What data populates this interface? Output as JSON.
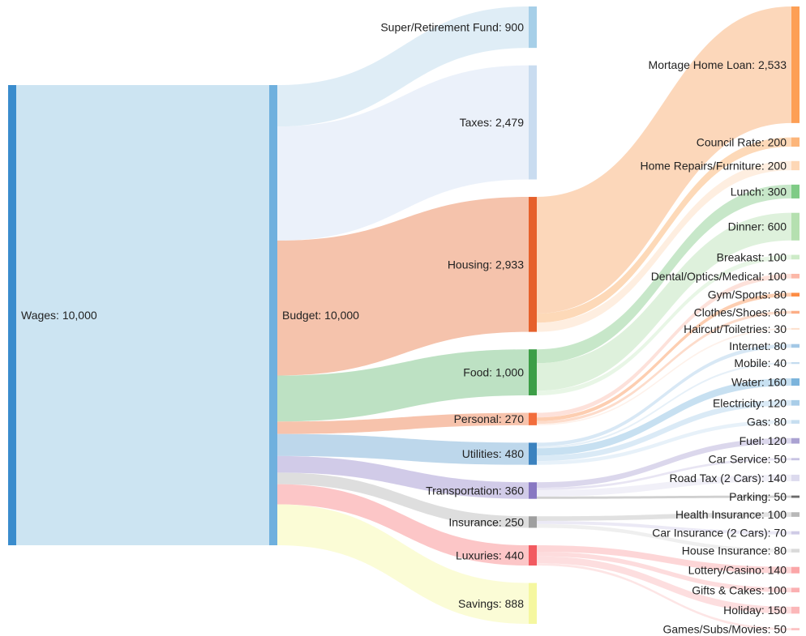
{
  "chart_data": {
    "type": "sankey",
    "value_format": "thousands-separated",
    "nodes": [
      {
        "id": "wages",
        "name": "Wages",
        "value": 10000,
        "color": "#3a8ccd",
        "link_color": "#c3dff0"
      },
      {
        "id": "budget",
        "name": "Budget",
        "value": 10000,
        "color": "#6fb0de",
        "link_color": "#c3dff0"
      },
      {
        "id": "super",
        "name": "Super/Retirement Fund",
        "value": 900,
        "color": "#a6cfe8",
        "link_color": "#d9eaf5"
      },
      {
        "id": "taxes",
        "name": "Taxes",
        "value": 2479,
        "color": "#c9dcf0",
        "link_color": "#e7eff9"
      },
      {
        "id": "housing",
        "name": "Housing",
        "value": 2933,
        "color": "#e6602b",
        "link_color": "#f3b89d"
      },
      {
        "id": "food",
        "name": "Food",
        "value": 1000,
        "color": "#3c9e47",
        "link_color": "#b2dcb8"
      },
      {
        "id": "personal",
        "name": "Personal",
        "value": 270,
        "color": "#f26d3c",
        "link_color": "#f6b99e"
      },
      {
        "id": "utilities",
        "name": "Utilities",
        "value": 480,
        "color": "#3b82bf",
        "link_color": "#b2d0e8"
      },
      {
        "id": "transportation",
        "name": "Transportation",
        "value": 360,
        "color": "#8878c2",
        "link_color": "#c9c2e4"
      },
      {
        "id": "insurance",
        "name": "Insurance",
        "value": 250,
        "color": "#9f9f9f",
        "link_color": "#d8d8d8"
      },
      {
        "id": "luxuries",
        "name": "Luxuries",
        "value": 440,
        "color": "#f25a60",
        "link_color": "#fcbcbd"
      },
      {
        "id": "savings",
        "name": "Savings",
        "value": 888,
        "color": "#f5f7a0",
        "link_color": "#fafbcf"
      },
      {
        "id": "mortgage",
        "name": "Mortage Home Loan",
        "value": 2533,
        "color": "#fd9f55",
        "link_color": "#fcd0ae"
      },
      {
        "id": "council",
        "name": "Council Rate",
        "value": 200,
        "color": "#fcb57a",
        "link_color": "#fdd2ab"
      },
      {
        "id": "homerepairs",
        "name": "Home Repairs/Furniture",
        "value": 200,
        "color": "#fdd7b5",
        "link_color": "#feebdb"
      },
      {
        "id": "lunch",
        "name": "Lunch",
        "value": 300,
        "color": "#7fcb86",
        "link_color": "#bde3c0"
      },
      {
        "id": "dinner",
        "name": "Dinner",
        "value": 600,
        "color": "#b5e0b0",
        "link_color": "#d8eed6"
      },
      {
        "id": "breakfast",
        "name": "Breakast",
        "value": 100,
        "color": "#cdebc8",
        "link_color": "#e4f4e2"
      },
      {
        "id": "dental",
        "name": "Dental/Optics/Medical",
        "value": 100,
        "color": "#fcb8a8",
        "link_color": "#fddcd4"
      },
      {
        "id": "gym",
        "name": "Gym/Sports",
        "value": 80,
        "color": "#fd8c44",
        "link_color": "#fdc6a3"
      },
      {
        "id": "clothes",
        "name": "Clothes/Shoes",
        "value": 60,
        "color": "#fcae86",
        "link_color": "#fdd6c2"
      },
      {
        "id": "haircut",
        "name": "Haircut/Toiletries",
        "value": 30,
        "color": "#fde0cc",
        "link_color": "#feefe6"
      },
      {
        "id": "internet",
        "name": "Internet",
        "value": 80,
        "color": "#a3c8e6",
        "link_color": "#d1e4f3"
      },
      {
        "id": "mobile",
        "name": "Mobile",
        "value": 40,
        "color": "#c4dcef",
        "link_color": "#e2edf7"
      },
      {
        "id": "water",
        "name": "Water",
        "value": 160,
        "color": "#7cb4dc",
        "link_color": "#bddaee"
      },
      {
        "id": "electricity",
        "name": "Electricity",
        "value": 120,
        "color": "#a9cde8",
        "link_color": "#d4e6f4"
      },
      {
        "id": "gas",
        "name": "Gas",
        "value": 80,
        "color": "#c6def0",
        "link_color": "#e3eff8"
      },
      {
        "id": "fuel",
        "name": "Fuel",
        "value": 120,
        "color": "#aaa2d2",
        "link_color": "#d5d0e9"
      },
      {
        "id": "carservice",
        "name": "Car Service",
        "value": 50,
        "color": "#c8c3e3",
        "link_color": "#e4e1f1"
      },
      {
        "id": "roadtax",
        "name": "Road Tax (2 Cars)",
        "value": 140,
        "color": "#dcdaee",
        "link_color": "#eeedf7"
      },
      {
        "id": "parking",
        "name": "Parking",
        "value": 50,
        "color": "#6b6b6b",
        "link_color": "#c8c8c8"
      },
      {
        "id": "healthins",
        "name": "Health Insurance",
        "value": 100,
        "color": "#b8b8b8",
        "link_color": "#dcdcdc"
      },
      {
        "id": "carins",
        "name": "Car Insurance (2 Cars)",
        "value": 70,
        "color": "#cfcbe6",
        "link_color": "#e7e5f3"
      },
      {
        "id": "houseins",
        "name": "House Insurance",
        "value": 80,
        "color": "#dadada",
        "link_color": "#ececec"
      },
      {
        "id": "lottery",
        "name": "Lottery/Casino",
        "value": 140,
        "color": "#fba6a8",
        "link_color": "#fdcfd0"
      },
      {
        "id": "gifts",
        "name": "Gifts & Cakes",
        "value": 100,
        "color": "#fbb0b2",
        "link_color": "#fdd6d7"
      },
      {
        "id": "holiday",
        "name": "Holiday",
        "value": 150,
        "color": "#fbb7b9",
        "link_color": "#fdd8d9"
      },
      {
        "id": "games",
        "name": "Games/Subs/Movies",
        "value": 50,
        "color": "#fcc3c4",
        "link_color": "#fde0e1"
      }
    ],
    "links": [
      {
        "source": "wages",
        "target": "budget",
        "value": 10000
      },
      {
        "source": "budget",
        "target": "super",
        "value": 900
      },
      {
        "source": "budget",
        "target": "taxes",
        "value": 2479
      },
      {
        "source": "budget",
        "target": "housing",
        "value": 2933
      },
      {
        "source": "budget",
        "target": "food",
        "value": 1000
      },
      {
        "source": "budget",
        "target": "personal",
        "value": 270
      },
      {
        "source": "budget",
        "target": "utilities",
        "value": 480
      },
      {
        "source": "budget",
        "target": "transportation",
        "value": 360
      },
      {
        "source": "budget",
        "target": "insurance",
        "value": 250
      },
      {
        "source": "budget",
        "target": "luxuries",
        "value": 440
      },
      {
        "source": "budget",
        "target": "savings",
        "value": 888
      },
      {
        "source": "housing",
        "target": "mortgage",
        "value": 2533
      },
      {
        "source": "housing",
        "target": "council",
        "value": 200
      },
      {
        "source": "housing",
        "target": "homerepairs",
        "value": 200
      },
      {
        "source": "food",
        "target": "lunch",
        "value": 300
      },
      {
        "source": "food",
        "target": "dinner",
        "value": 600
      },
      {
        "source": "food",
        "target": "breakfast",
        "value": 100
      },
      {
        "source": "personal",
        "target": "dental",
        "value": 100
      },
      {
        "source": "personal",
        "target": "gym",
        "value": 80
      },
      {
        "source": "personal",
        "target": "clothes",
        "value": 60
      },
      {
        "source": "personal",
        "target": "haircut",
        "value": 30
      },
      {
        "source": "utilities",
        "target": "internet",
        "value": 80
      },
      {
        "source": "utilities",
        "target": "mobile",
        "value": 40
      },
      {
        "source": "utilities",
        "target": "water",
        "value": 160
      },
      {
        "source": "utilities",
        "target": "electricity",
        "value": 120
      },
      {
        "source": "utilities",
        "target": "gas",
        "value": 80
      },
      {
        "source": "transportation",
        "target": "fuel",
        "value": 120
      },
      {
        "source": "transportation",
        "target": "carservice",
        "value": 50
      },
      {
        "source": "transportation",
        "target": "roadtax",
        "value": 140
      },
      {
        "source": "transportation",
        "target": "parking",
        "value": 50
      },
      {
        "source": "insurance",
        "target": "healthins",
        "value": 100
      },
      {
        "source": "insurance",
        "target": "carins",
        "value": 70
      },
      {
        "source": "insurance",
        "target": "houseins",
        "value": 80
      },
      {
        "source": "luxuries",
        "target": "lottery",
        "value": 140
      },
      {
        "source": "luxuries",
        "target": "gifts",
        "value": 100
      },
      {
        "source": "luxuries",
        "target": "holiday",
        "value": 150
      },
      {
        "source": "luxuries",
        "target": "games",
        "value": 50
      }
    ]
  }
}
